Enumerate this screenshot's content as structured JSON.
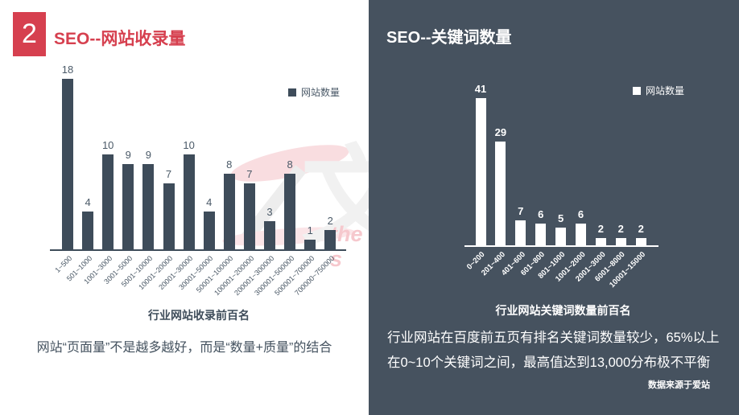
{
  "badge": "2",
  "left_panel": {
    "title": "SEO--网站收录量",
    "note": "网站“页面量”不是越多越好，而是“数量+质量”的结合"
  },
  "right_panel": {
    "title": "SEO--关键词数量",
    "note": "行业网站在百度前五页有排名关键词数量较少，65%以上在0~10个关键词之间，最高值达到13,000分布极不平衡",
    "source": "数据来源于爱站"
  },
  "watermark": {
    "glyph": "文",
    "text": "the s"
  },
  "colors": {
    "accent_red": "#d6404f",
    "bar_dark": "#3e4c5a",
    "panel_dark": "#46525f",
    "bar_light": "#ffffff"
  },
  "chart_data": [
    {
      "type": "bar",
      "title": "行业网站收录前百名",
      "legend": "网站数量",
      "legend_position": "top-right",
      "grid": false,
      "ylim": [
        0,
        18
      ],
      "bar_color": "#3e4c5a",
      "categories": [
        "1~500",
        "501~1000",
        "1001~3000",
        "3001~5000",
        "5001~10000",
        "10001~20000",
        "20001~30000",
        "30001~50000",
        "50001~100000",
        "100001~200000",
        "200001~300000",
        "300001~500000",
        "500001~700000",
        "700000~750000"
      ],
      "values": [
        18,
        4,
        10,
        9,
        9,
        7,
        10,
        4,
        8,
        7,
        3,
        8,
        1,
        2
      ]
    },
    {
      "type": "bar",
      "title": "行业网站关键词数量前百名",
      "legend": "网站数量",
      "legend_position": "top-right",
      "grid": false,
      "ylim": [
        0,
        41
      ],
      "bar_color": "#ffffff",
      "categories": [
        "0~200",
        "201~400",
        "401~600",
        "601~800",
        "801~1000",
        "1001~2000",
        "2001~3000",
        "6001~8000",
        "10001~15000"
      ],
      "values": [
        41,
        29,
        7,
        6,
        5,
        6,
        2,
        2,
        2
      ]
    }
  ]
}
